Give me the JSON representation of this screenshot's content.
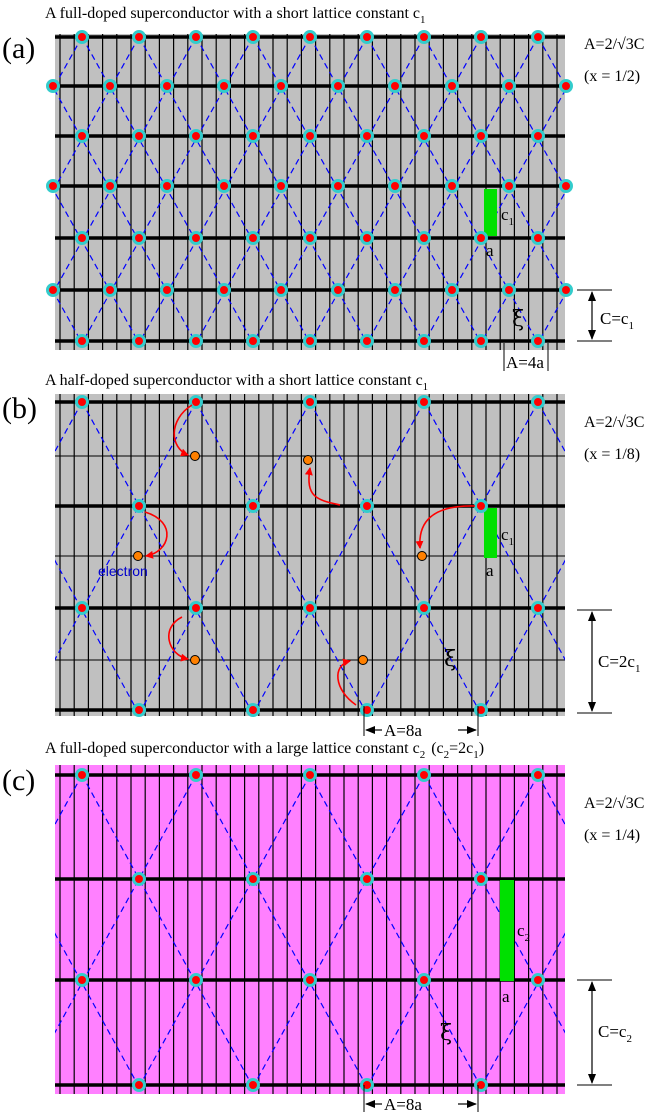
{
  "panels": [
    {
      "id": "a",
      "label": "(a)",
      "caption": "A full-doped superconductor with a short lattice constant c",
      "caption_sub": "1",
      "caption_extra": "",
      "caption_extra_sub": "",
      "caption_extra_tail": "",
      "formula": "A=2/√3C",
      "doping": "(x = 1/2)",
      "c_label": "c",
      "c_sub": "1",
      "a_label": "a",
      "A_dim": "A=4a",
      "C_dim": "C=c",
      "C_dim_sub": "1",
      "xi": "ξ",
      "electron_label": "",
      "background": "#c0c0c0",
      "period_cells": 2
    },
    {
      "id": "b",
      "label": "(b)",
      "caption": "A half-doped superconductor with a short lattice constant c",
      "caption_sub": "1",
      "caption_extra": "",
      "caption_extra_sub": "",
      "caption_extra_tail": "",
      "formula": "A=2/√3C",
      "doping": "(x = 1/8)",
      "c_label": "c",
      "c_sub": "1",
      "a_label": "a",
      "A_dim": "A=8a",
      "C_dim": "C=2c",
      "C_dim_sub": "1",
      "xi": "ξ",
      "electron_label": "electron",
      "background": "#c0c0c0",
      "period_cells": 4
    },
    {
      "id": "c",
      "label": "(c)",
      "caption": "A full-doped superconductor with a large lattice constant c",
      "caption_sub": "2",
      "caption_extra": "(c",
      "caption_extra_sub": "2",
      "caption_extra_tail": "=2c",
      "caption_extra_sub2": "1",
      "formula": "A=2/√3C",
      "doping": "(x = 1/4)",
      "c_label": "c",
      "c_sub": "2",
      "a_label": "a",
      "A_dim": "A=8a",
      "C_dim": "C=c",
      "C_dim_sub": "2",
      "xi": "ξ",
      "electron_label": "",
      "background": "#ff80ff",
      "period_cells": 4
    }
  ],
  "colors": {
    "site_fill": "#ff0000",
    "site_ring": "#33cccc",
    "bond": "#0000ff",
    "electron_fill": "#ff8000",
    "arrow": "#ff0000",
    "highlight": "#00e000"
  }
}
